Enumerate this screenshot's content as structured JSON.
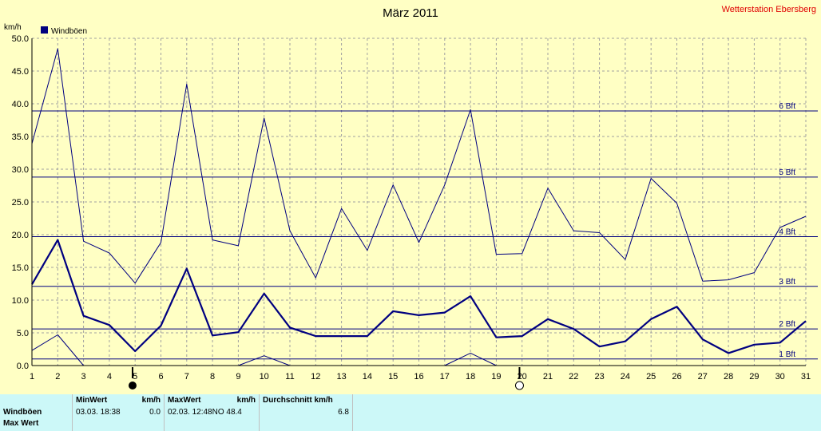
{
  "header": {
    "title": "März 2011",
    "station": "Wetterstation Ebersberg"
  },
  "chart_data": {
    "type": "line",
    "title": "März 2011",
    "ylabel": "km/h",
    "ylim": [
      0,
      50
    ],
    "yticks": [
      "0.0",
      "5.0",
      "10.0",
      "15.0",
      "20.0",
      "25.0",
      "30.0",
      "35.0",
      "40.0",
      "45.0",
      "50.0"
    ],
    "x": [
      1,
      2,
      3,
      4,
      5,
      6,
      7,
      8,
      9,
      10,
      11,
      12,
      13,
      14,
      15,
      16,
      17,
      18,
      19,
      20,
      21,
      22,
      23,
      24,
      25,
      26,
      27,
      28,
      29,
      30,
      31
    ],
    "legend": {
      "label": "Windböen",
      "color": "#000080",
      "position": "top-left"
    },
    "grid": true,
    "series": [
      {
        "role": "max",
        "values": [
          33.9,
          48.4,
          19.0,
          17.2,
          12.6,
          18.8,
          43.0,
          19.2,
          18.3,
          37.8,
          20.6,
          13.4,
          24.0,
          17.6,
          27.6,
          18.8,
          27.6,
          39.1,
          17.0,
          17.1,
          27.1,
          20.6,
          20.3,
          16.2,
          28.6,
          24.8,
          12.9,
          13.1,
          14.2,
          21.1,
          22.8
        ]
      },
      {
        "name": "Windböen",
        "role": "mean",
        "values": [
          12.4,
          19.2,
          7.6,
          6.2,
          2.2,
          6.1,
          14.8,
          4.6,
          5.1,
          11.0,
          5.8,
          4.5,
          4.5,
          4.5,
          8.3,
          7.7,
          8.1,
          10.6,
          4.3,
          4.5,
          7.1,
          5.6,
          2.9,
          3.7,
          7.1,
          9.0,
          4.0,
          1.9,
          3.2,
          3.5,
          6.8
        ]
      },
      {
        "role": "min",
        "values": [
          2.3,
          4.7,
          0.0,
          null,
          null,
          null,
          null,
          null,
          0.0,
          1.5,
          0.0,
          null,
          null,
          null,
          null,
          null,
          0.0,
          1.9,
          0.0,
          null,
          null,
          null,
          null,
          null,
          null,
          null,
          null,
          null,
          null,
          null,
          null
        ]
      }
    ],
    "reference_lines": [
      {
        "label": "1 Bft",
        "value": 1.0
      },
      {
        "label": "2 Bft",
        "value": 5.6
      },
      {
        "label": "3 Bft",
        "value": 12.1
      },
      {
        "label": "4 Bft",
        "value": 19.7
      },
      {
        "label": "5 Bft",
        "value": 28.8
      },
      {
        "label": "6 Bft",
        "value": 38.9
      }
    ],
    "moon_markers": [
      {
        "day": 5,
        "phase": "new-moon"
      },
      {
        "day": 20,
        "phase": "full-moon"
      }
    ]
  },
  "stats": {
    "headers": {
      "min": "MinWert",
      "min_unit": "km/h",
      "max": "MaxWert",
      "max_unit": "km/h",
      "avg": "Durchschnitt km/h"
    },
    "rows": [
      {
        "label": "Windböen",
        "min_time": "03.03.  18:38",
        "min_val": "0.0",
        "max_time": "02.03.  12:48",
        "max_dir": "NO",
        "max_val": "48.4",
        "avg": "6.8"
      },
      {
        "label": "Max Wert",
        "min_time": "",
        "min_val": "",
        "max_time": "",
        "max_dir": "",
        "max_val": "",
        "avg": ""
      }
    ]
  },
  "colors": {
    "plot_bg": "#ffffc4",
    "grid": "#a0a0a0",
    "series": "#000080",
    "reference": "#000080",
    "title": "#000000",
    "station": "#e00000",
    "stats_bg": "#ccf8f8"
  }
}
